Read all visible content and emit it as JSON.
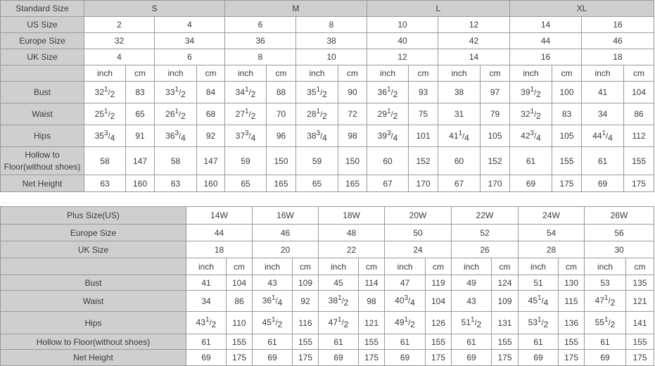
{
  "standard_table": {
    "header_label": "Standard Size",
    "groups": [
      "S",
      "M",
      "L",
      "XL"
    ],
    "rows_spanned": [
      {
        "label": "US Size",
        "values": [
          "2",
          "4",
          "6",
          "8",
          "10",
          "12",
          "14",
          "16"
        ]
      },
      {
        "label": "Europe Size",
        "values": [
          "32",
          "34",
          "36",
          "38",
          "40",
          "42",
          "44",
          "46"
        ]
      },
      {
        "label": "UK Size",
        "values": [
          "4",
          "6",
          "8",
          "10",
          "12",
          "14",
          "16",
          "18"
        ]
      }
    ],
    "unit_labels": [
      "inch",
      "cm"
    ],
    "measure_rows": [
      {
        "label": "Bust",
        "values": [
          "32 1/2",
          "83",
          "33 1/2",
          "84",
          "34 1/2",
          "88",
          "35 1/2",
          "90",
          "36 1/2",
          "93",
          "38",
          "97",
          "39 1/2",
          "100",
          "41",
          "104"
        ]
      },
      {
        "label": "Waist",
        "values": [
          "25 1/2",
          "65",
          "26 1/2",
          "68",
          "27 1/2",
          "70",
          "28 1/2",
          "72",
          "29 1/2",
          "75",
          "31",
          "79",
          "32 1/2",
          "83",
          "34",
          "86"
        ]
      },
      {
        "label": "Hips",
        "values": [
          "35 3/4",
          "91",
          "36 3/4",
          "92",
          "37 3/4",
          "96",
          "38 3/4",
          "98",
          "39 3/4",
          "101",
          "41 1/4",
          "105",
          "42 3/4",
          "105",
          "44 1/4",
          "112"
        ]
      },
      {
        "label": "Hollow to Floor(without shoes)",
        "values": [
          "58",
          "147",
          "58",
          "147",
          "59",
          "150",
          "59",
          "150",
          "60",
          "152",
          "60",
          "152",
          "61",
          "155",
          "61",
          "155"
        ]
      },
      {
        "label": "Net Height",
        "values": [
          "63",
          "160",
          "63",
          "160",
          "65",
          "165",
          "65",
          "165",
          "67",
          "170",
          "67",
          "170",
          "69",
          "175",
          "69",
          "175"
        ]
      }
    ]
  },
  "plus_table": {
    "rows_spanned": [
      {
        "label": "Plus Size(US)",
        "values": [
          "14W",
          "16W",
          "18W",
          "20W",
          "22W",
          "24W",
          "26W"
        ]
      },
      {
        "label": "Europe Size",
        "values": [
          "44",
          "46",
          "48",
          "50",
          "52",
          "54",
          "56"
        ]
      },
      {
        "label": "UK Size",
        "values": [
          "18",
          "20",
          "22",
          "24",
          "26",
          "28",
          "30"
        ]
      }
    ],
    "unit_labels": [
      "inch",
      "cm"
    ],
    "measure_rows": [
      {
        "label": "Bust",
        "values": [
          "41",
          "104",
          "43",
          "109",
          "45",
          "114",
          "47",
          "119",
          "49",
          "124",
          "51",
          "130",
          "53",
          "135"
        ]
      },
      {
        "label": "Waist",
        "values": [
          "34",
          "86",
          "36 1/4",
          "92",
          "38 1/2",
          "98",
          "40 3/4",
          "104",
          "43",
          "109",
          "45 1/4",
          "115",
          "47 1/2",
          "121"
        ]
      },
      {
        "label": "Hips",
        "values": [
          "43 1/2",
          "110",
          "45 1/2",
          "116",
          "47 1/2",
          "121",
          "49 1/2",
          "126",
          "51 1/2",
          "131",
          "53 1/2",
          "136",
          "55 1/2",
          "141"
        ]
      },
      {
        "label": "Hollow to Floor(without shoes)",
        "values": [
          "61",
          "155",
          "61",
          "155",
          "61",
          "155",
          "61",
          "155",
          "61",
          "155",
          "61",
          "155",
          "61",
          "155"
        ]
      },
      {
        "label": "Net Height",
        "values": [
          "69",
          "175",
          "69",
          "175",
          "69",
          "175",
          "69",
          "175",
          "69",
          "175",
          "69",
          "175",
          "69",
          "175"
        ]
      }
    ]
  },
  "colors": {
    "label_bg": "#cfcfcf",
    "border": "#9a9a9a",
    "text": "#3a3a3a"
  }
}
